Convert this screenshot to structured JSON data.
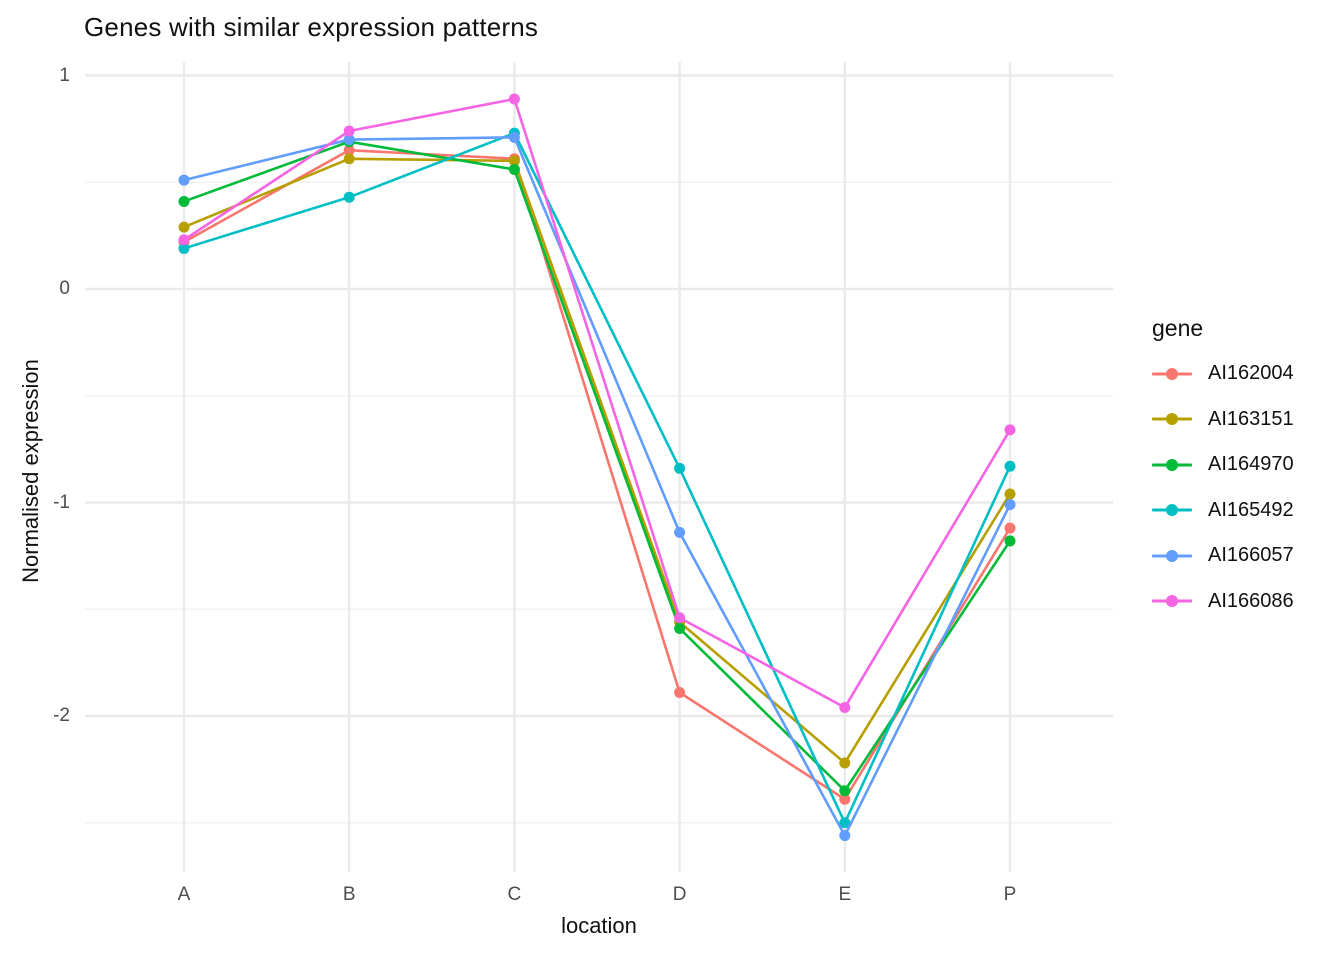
{
  "chart_data": {
    "type": "line",
    "title": "Genes with similar expression patterns",
    "xlabel": "location",
    "ylabel": "Normalised expression",
    "categories": [
      "A",
      "B",
      "C",
      "D",
      "E",
      "P"
    ],
    "y_ticks": [
      {
        "value": 1,
        "label": "1"
      },
      {
        "value": 0,
        "label": "0"
      },
      {
        "value": -1,
        "label": "-1"
      },
      {
        "value": -2,
        "label": "-2"
      }
    ],
    "y_minor": [
      0.5,
      -0.5,
      -1.5,
      -2.5
    ],
    "ylim": [
      -2.73,
      1.06
    ],
    "grid": "major-xy + minor-y",
    "legend_title": "gene",
    "legend_position": "right",
    "series": [
      {
        "name": "AI162004",
        "color": "#F8766D",
        "values": [
          0.22,
          0.65,
          0.61,
          -1.89,
          -2.39,
          -1.12
        ]
      },
      {
        "name": "AI163151",
        "color": "#B79F00",
        "values": [
          0.29,
          0.61,
          0.6,
          -1.56,
          -2.22,
          -0.96
        ]
      },
      {
        "name": "AI164970",
        "color": "#00BA38",
        "values": [
          0.41,
          0.69,
          0.56,
          -1.59,
          -2.35,
          -1.18
        ]
      },
      {
        "name": "AI165492",
        "color": "#00BFC4",
        "values": [
          0.19,
          0.43,
          0.73,
          -0.84,
          -2.5,
          -0.83
        ]
      },
      {
        "name": "AI166057",
        "color": "#619CFF",
        "values": [
          0.51,
          0.7,
          0.71,
          -1.14,
          -2.56,
          -1.01
        ]
      },
      {
        "name": "AI166086",
        "color": "#F564E3",
        "values": [
          0.23,
          0.74,
          0.89,
          -1.54,
          -1.96,
          -0.66
        ]
      }
    ],
    "colors": {
      "background": "#FFFFFF",
      "grid_major": "#EAEAEA",
      "grid_minor": "#F2F2F2",
      "tick_text": "#4D4D4D",
      "text": "#111111"
    }
  }
}
